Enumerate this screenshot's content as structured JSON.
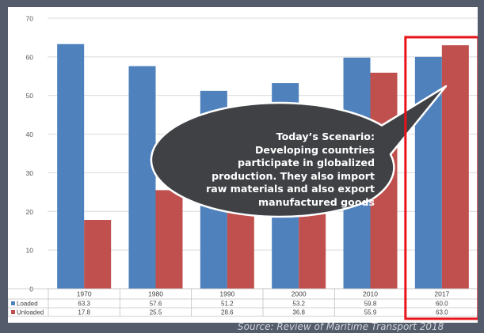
{
  "chart_data": {
    "type": "bar",
    "categories": [
      "1970",
      "1980",
      "1990",
      "2000",
      "2010",
      "2017"
    ],
    "series": [
      {
        "name": "Loaded",
        "values": [
          63.3,
          57.6,
          51.2,
          53.2,
          59.8,
          60.0
        ],
        "labels": [
          "63.3",
          "57.6",
          "51.2",
          "53.2",
          "59.8",
          "60.0"
        ],
        "color": "#4f81bd"
      },
      {
        "name": "Unloaded",
        "values": [
          17.8,
          25.5,
          28.6,
          36.8,
          55.9,
          63.0
        ],
        "labels": [
          "17.8",
          "25.5",
          "28.6",
          "36.8",
          "55.9",
          "63.0"
        ],
        "color": "#c0504d"
      }
    ],
    "yticks": [
      "0",
      "10",
      "20",
      "30",
      "40",
      "50",
      "60",
      "70"
    ],
    "ylim": [
      0,
      70
    ],
    "grid": true,
    "legend": "data table below chart",
    "highlight_category": "2017",
    "highlight_color": "#e8141a"
  },
  "callout": {
    "lines": [
      "Today’s Scenario:",
      "Developing countries",
      "participate in globalized",
      "production. They also import",
      "raw materials and also export",
      "manufactured goods"
    ],
    "fill": "#3f4145"
  },
  "source": "Source: Review of Maritime Transport 2018"
}
